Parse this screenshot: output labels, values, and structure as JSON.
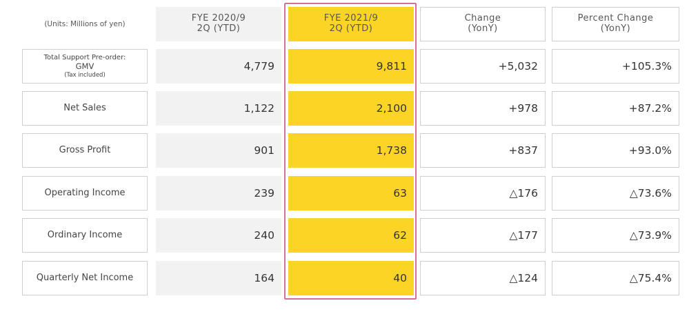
{
  "units": "(Units: Millions of yen)",
  "headers": {
    "prev": {
      "line1": "FYE 2020/9",
      "line2": "2Q (YTD)"
    },
    "curr": {
      "line1": "FYE 2021/9",
      "line2": "2Q (YTD)"
    },
    "change": {
      "line1": "Change",
      "line2": "(YonY)"
    },
    "percent": {
      "line1": "Percent Change",
      "line2": "(YonY)"
    }
  },
  "gmv_label": {
    "line1": "Total Support Pre-order:",
    "line2": "GMV",
    "line3": "(Tax included)"
  },
  "rows": [
    {
      "label": "Total Support Pre-order: GMV (Tax included)",
      "prev": "4,779",
      "curr": "9,811",
      "change": "+5,032",
      "percent": "+105.3%"
    },
    {
      "label": "Net Sales",
      "prev": "1,122",
      "curr": "2,100",
      "change": "+978",
      "percent": "+87.2%"
    },
    {
      "label": "Gross Profit",
      "prev": "901",
      "curr": "1,738",
      "change": "+837",
      "percent": "+93.0%"
    },
    {
      "label": "Operating Income",
      "prev": "239",
      "curr": "63",
      "change": "△176",
      "percent": "△73.6%"
    },
    {
      "label": "Ordinary Income",
      "prev": "240",
      "curr": "62",
      "change": "△177",
      "percent": "△73.9%"
    },
    {
      "label": "Quarterly Net Income",
      "prev": "164",
      "curr": "40",
      "change": "△124",
      "percent": "△75.4%"
    }
  ],
  "colors": {
    "highlight_border": "#d96b9a",
    "current_fill": "#fcd425",
    "previous_fill": "#f2f2f2"
  }
}
